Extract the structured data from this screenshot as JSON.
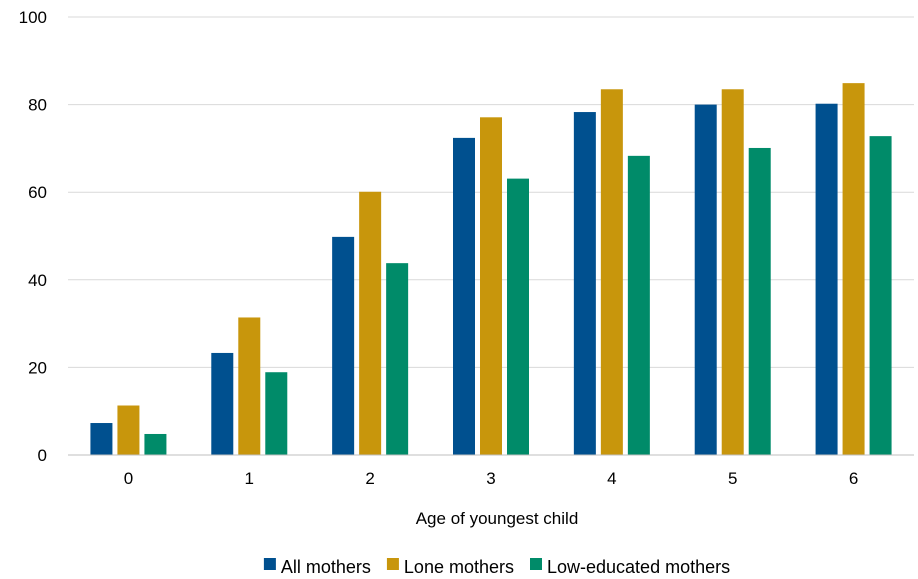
{
  "chart_data": {
    "type": "bar",
    "title": "",
    "xlabel": "Age of youngest child",
    "ylabel": "",
    "categories": [
      "0",
      "1",
      "2",
      "3",
      "4",
      "5",
      "6"
    ],
    "ylim": [
      0,
      100
    ],
    "yticks": [
      "0",
      "20",
      "40",
      "60",
      "80",
      "100"
    ],
    "grid": "horizontal",
    "legend_position": "bottom",
    "series": [
      {
        "name": "All mothers",
        "color": "#00508F",
        "values": [
          7.3,
          23.3,
          49.8,
          72.4,
          78.3,
          80.0,
          80.2
        ]
      },
      {
        "name": "Lone mothers",
        "color": "#C8960C",
        "values": [
          11.3,
          31.4,
          60.1,
          77.1,
          83.5,
          83.5,
          84.9
        ]
      },
      {
        "name": "Low-educated mothers",
        "color": "#008B69",
        "values": [
          4.8,
          18.9,
          43.8,
          63.1,
          68.3,
          70.1,
          72.8
        ]
      }
    ]
  }
}
